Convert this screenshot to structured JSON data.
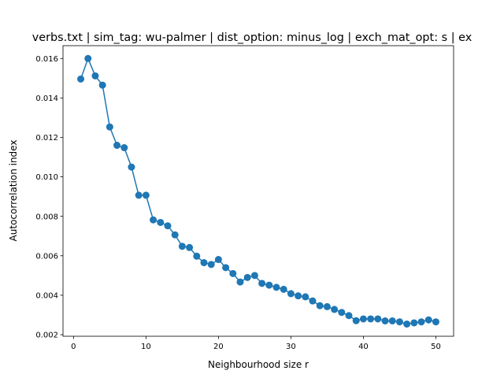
{
  "chart_data": {
    "type": "line",
    "title": "verbs.txt | sim_tag: wu-palmer | dist_option: minus_log | exch_mat_opt: s | ex",
    "xlabel": "Neighbourhood size r",
    "ylabel": "Autocorrelation index",
    "xlim": [
      -1.45,
      52.45
    ],
    "ylim": [
      0.00192,
      0.01665
    ],
    "x_ticks": [
      0,
      10,
      20,
      30,
      40,
      50
    ],
    "x_tick_labels": [
      "0",
      "10",
      "20",
      "30",
      "40",
      "50"
    ],
    "y_ticks": [
      0.002,
      0.004,
      0.006,
      0.008,
      0.01,
      0.012,
      0.014,
      0.016
    ],
    "y_tick_labels": [
      "0.002",
      "0.004",
      "0.006",
      "0.008",
      "0.010",
      "0.012",
      "0.014",
      "0.016"
    ],
    "grid": false,
    "legend": false,
    "color": "#1f77b4",
    "marker": "circle",
    "series": [
      {
        "x": [
          1,
          2,
          3,
          4,
          5,
          6,
          7,
          8,
          9,
          10,
          11,
          12,
          13,
          14,
          15,
          16,
          17,
          18,
          19,
          20,
          21,
          22,
          23,
          24,
          25,
          26,
          27,
          28,
          29,
          30,
          31,
          32,
          33,
          34,
          35,
          36,
          37,
          38,
          39,
          40,
          41,
          42,
          43,
          44,
          45,
          46,
          47,
          48,
          49,
          50
        ],
        "values": [
          0.01496,
          0.016,
          0.01512,
          0.01465,
          0.01253,
          0.0116,
          0.01148,
          0.0105,
          0.00907,
          0.00907,
          0.00782,
          0.00769,
          0.00752,
          0.00706,
          0.00648,
          0.00642,
          0.00598,
          0.00565,
          0.00556,
          0.00581,
          0.0054,
          0.0051,
          0.00467,
          0.0049,
          0.005,
          0.0046,
          0.00451,
          0.0044,
          0.0043,
          0.00408,
          0.00397,
          0.00392,
          0.00371,
          0.00347,
          0.00342,
          0.00328,
          0.00313,
          0.00297,
          0.00271,
          0.0028,
          0.0028,
          0.0028,
          0.0027,
          0.0027,
          0.00265,
          0.00254,
          0.0026,
          0.00265,
          0.00275,
          0.00265
        ]
      }
    ]
  }
}
